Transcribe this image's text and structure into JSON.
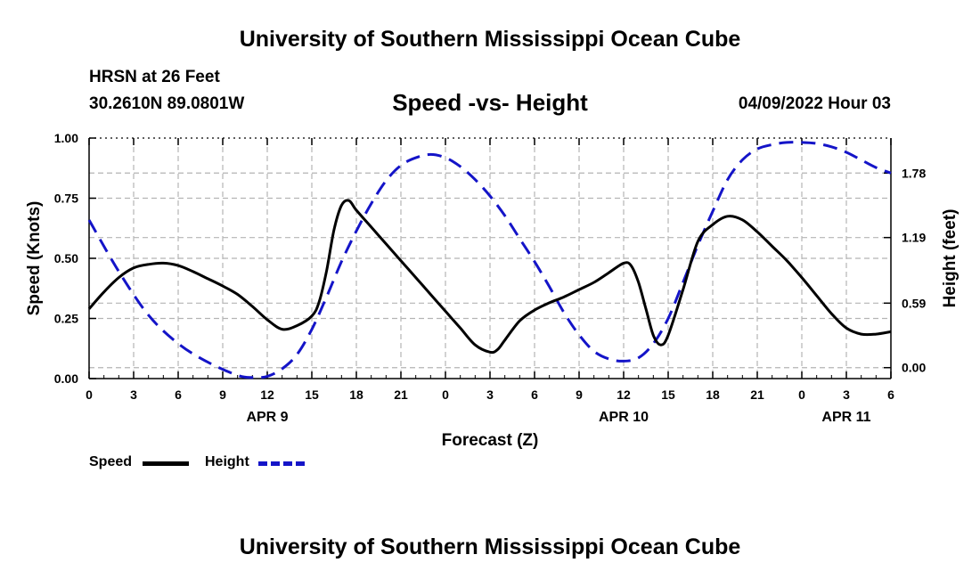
{
  "header": {
    "title": "University of Southern Mississippi Ocean Cube",
    "station": "HRSN at 26 Feet",
    "coords": "30.2610N  89.0801W",
    "subtitle": "Speed -vs- Height",
    "datetime": "04/09/2022 Hour 03"
  },
  "footer": {
    "title": "University of Southern Mississippi Ocean Cube"
  },
  "legend": {
    "speed_label": "Speed",
    "height_label": "Height"
  },
  "colors": {
    "speed": "#000000",
    "height": "#1414c8",
    "grid": "#b4b4b4"
  },
  "chart_data": {
    "type": "line",
    "xlabel": "Forecast (Z)",
    "ylabel": "Speed (Knots)",
    "y2label": "Height (feet)",
    "xlim": [
      0,
      54
    ],
    "ylim": [
      0,
      1.0
    ],
    "y2lim": [
      -0.1,
      2.1
    ],
    "x_ticks": [
      0,
      3,
      6,
      9,
      12,
      15,
      18,
      21,
      24,
      27,
      30,
      33,
      36,
      39,
      42,
      45,
      48,
      51,
      54
    ],
    "x_tick_labels": [
      "0",
      "3",
      "6",
      "9",
      "12",
      "15",
      "18",
      "21",
      "0",
      "3",
      "6",
      "9",
      "12",
      "15",
      "18",
      "21",
      "0",
      "3",
      "6"
    ],
    "y_ticks": [
      0,
      0.25,
      0.5,
      0.75,
      1.0
    ],
    "y_tick_labels": [
      "0.00",
      "0.25",
      "0.50",
      "0.75",
      "1.00"
    ],
    "y2_ticks": [
      0.0,
      0.59,
      1.19,
      1.78
    ],
    "y2_tick_labels": [
      "0.00",
      "0.59",
      "1.19",
      "1.78"
    ],
    "date_labels": [
      {
        "x": 12,
        "label": "APR 9"
      },
      {
        "x": 36,
        "label": "APR 10"
      },
      {
        "x": 51,
        "label": "APR 11"
      }
    ],
    "series": [
      {
        "name": "Speed",
        "axis": "left",
        "x": [
          0,
          1,
          2,
          3,
          4,
          5,
          6,
          7,
          8,
          9,
          10,
          11,
          12,
          13,
          14,
          15,
          15.5,
          16,
          16.5,
          17,
          17.5,
          18,
          19,
          20,
          21,
          22,
          23,
          24,
          25,
          26,
          27,
          27.5,
          28,
          29,
          30,
          31,
          32,
          33,
          34,
          35,
          36,
          36.5,
          37,
          37.5,
          38,
          38.5,
          39,
          40,
          41,
          42,
          43,
          44,
          45,
          46,
          47,
          48,
          49,
          50,
          51,
          52,
          53,
          54
        ],
        "values": [
          0.29,
          0.36,
          0.42,
          0.46,
          0.475,
          0.48,
          0.47,
          0.445,
          0.415,
          0.385,
          0.35,
          0.3,
          0.245,
          0.205,
          0.22,
          0.26,
          0.32,
          0.45,
          0.62,
          0.72,
          0.74,
          0.7,
          0.63,
          0.56,
          0.49,
          0.42,
          0.35,
          0.28,
          0.21,
          0.14,
          0.11,
          0.12,
          0.16,
          0.24,
          0.285,
          0.315,
          0.34,
          0.37,
          0.4,
          0.44,
          0.48,
          0.47,
          0.4,
          0.29,
          0.18,
          0.14,
          0.18,
          0.37,
          0.57,
          0.64,
          0.675,
          0.66,
          0.61,
          0.55,
          0.49,
          0.42,
          0.345,
          0.27,
          0.21,
          0.185,
          0.185,
          0.195
        ]
      },
      {
        "name": "Height",
        "axis": "right",
        "x": [
          0,
          2,
          4,
          6,
          8,
          10,
          11,
          12,
          13,
          14,
          15,
          16,
          17,
          18,
          19,
          20,
          21,
          22,
          23,
          24,
          25,
          26,
          27,
          28,
          29,
          30,
          31,
          32,
          33,
          34,
          35,
          36,
          37,
          38,
          39,
          40,
          41,
          42,
          43,
          44,
          45,
          46,
          47,
          48,
          49,
          50,
          51,
          52,
          53,
          54
        ],
        "values": [
          1.35,
          0.88,
          0.48,
          0.22,
          0.05,
          -0.07,
          -0.09,
          -0.08,
          -0.01,
          0.12,
          0.35,
          0.65,
          0.97,
          1.25,
          1.5,
          1.71,
          1.85,
          1.92,
          1.95,
          1.92,
          1.84,
          1.72,
          1.57,
          1.39,
          1.18,
          0.97,
          0.74,
          0.5,
          0.3,
          0.15,
          0.08,
          0.06,
          0.09,
          0.22,
          0.45,
          0.78,
          1.12,
          1.43,
          1.72,
          1.9,
          2.0,
          2.04,
          2.06,
          2.06,
          2.05,
          2.02,
          1.97,
          1.9,
          1.83,
          1.78
        ]
      }
    ]
  }
}
